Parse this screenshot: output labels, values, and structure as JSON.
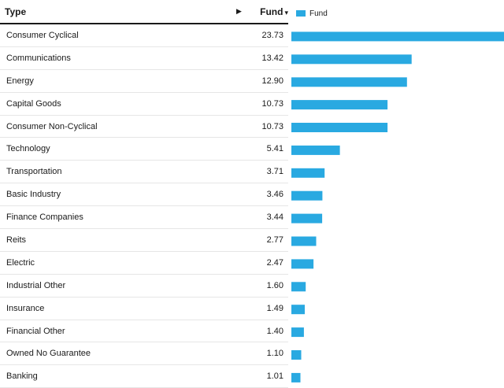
{
  "header": {
    "type_label": "Type",
    "fund_label": "Fund",
    "expand_arrow": "▶",
    "sort_caret": "▾"
  },
  "legend": {
    "label": "Fund"
  },
  "colors": {
    "bar": "#29a9e1"
  },
  "chart_data": {
    "type": "bar",
    "orientation": "horizontal",
    "categories": [
      "Consumer Cyclical",
      "Communications",
      "Energy",
      "Capital Goods",
      "Consumer Non-Cyclical",
      "Technology",
      "Transportation",
      "Basic Industry",
      "Finance Companies",
      "Reits",
      "Electric",
      "Industrial Other",
      "Insurance",
      "Financial Other",
      "Owned No Guarantee",
      "Banking"
    ],
    "series": [
      {
        "name": "Fund",
        "values": [
          23.73,
          13.42,
          12.9,
          10.73,
          10.73,
          5.41,
          3.71,
          3.46,
          3.44,
          2.77,
          2.47,
          1.6,
          1.49,
          1.4,
          1.1,
          1.01
        ]
      }
    ],
    "value_labels": [
      "23.73",
      "13.42",
      "12.90",
      "10.73",
      "10.73",
      "5.41",
      "3.71",
      "3.46",
      "3.44",
      "2.77",
      "2.47",
      "1.60",
      "1.49",
      "1.40",
      "1.10",
      "1.01"
    ],
    "legend_position": "top-left",
    "grid": false
  }
}
